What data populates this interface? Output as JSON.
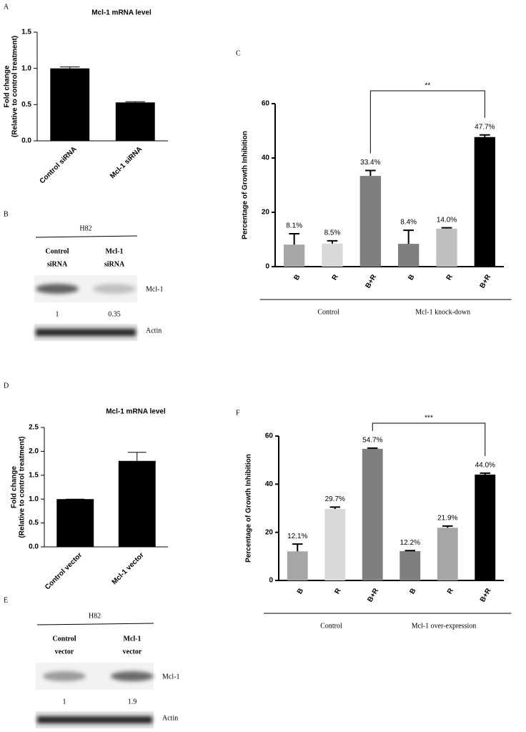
{
  "chart_data": [
    {
      "panel": "A",
      "type": "bar",
      "title": "Mcl-1 mRNA level",
      "ylabel": [
        "Fold change",
        "(Relative to control treatment)"
      ],
      "categories": [
        "Control siRNA",
        "Mcl-1 siRNA"
      ],
      "values": [
        1.0,
        0.53
      ],
      "errors": [
        0.02,
        0.01
      ],
      "colors": [
        "#000000",
        "#000000"
      ],
      "ylim": [
        0,
        1.5
      ],
      "yticks": [
        {
          "value": 0,
          "label": "0.0"
        },
        {
          "value": 0.5,
          "label": "0.5"
        },
        {
          "value": 1,
          "label": "1.0"
        },
        {
          "value": 1.5,
          "label": "1.5"
        }
      ]
    },
    {
      "panel": "C",
      "type": "bar",
      "ylabel": "Percentage of Growth Inhibition",
      "categories": [
        "B",
        "R",
        "B+R",
        "B",
        "R",
        "B+R"
      ],
      "values": [
        8.1,
        8.5,
        33.4,
        8.4,
        14.0,
        47.7
      ],
      "errors": [
        4,
        1,
        2,
        5,
        0.3,
        0.8
      ],
      "value_labels": [
        "8.1%",
        "8.5%",
        "33.4%",
        "8.4%",
        "14.0%",
        "47.7%"
      ],
      "colors": [
        "#a6a6a6",
        "#d9d9d9",
        "#7f7f7f",
        "#7f7f7f",
        "#bfbfbf",
        "#000000"
      ],
      "ylim": [
        0,
        60
      ],
      "yticks": [
        0,
        20,
        40,
        60
      ],
      "groups": [
        "Control",
        "Mcl-1 knock-down"
      ],
      "annotation": "**"
    },
    {
      "panel": "D",
      "type": "bar",
      "title": "Mcl-1 mRNA level",
      "ylabel": [
        "Fold change",
        "(Relative to control treatment)"
      ],
      "categories": [
        "Control vector",
        "Mcl-1 vector"
      ],
      "values": [
        1.0,
        1.8
      ],
      "errors": [
        0,
        0.18
      ],
      "colors": [
        "#000000",
        "#000000"
      ],
      "ylim": [
        0,
        2.5
      ],
      "yticks": [
        {
          "value": 0,
          "label": "0.0"
        },
        {
          "value": 0.5,
          "label": "0.5"
        },
        {
          "value": 1,
          "label": "1.0"
        },
        {
          "value": 1.5,
          "label": "1.5"
        },
        {
          "value": 2,
          "label": "2.0"
        },
        {
          "value": 2.5,
          "label": "2.5"
        }
      ]
    },
    {
      "panel": "F",
      "type": "bar",
      "ylabel": "Percentage of Growth Inhibition",
      "categories": [
        "B",
        "R",
        "B+R",
        "B",
        "R",
        "B+R"
      ],
      "values": [
        12.1,
        29.7,
        54.7,
        12.2,
        21.9,
        44.0
      ],
      "errors": [
        3,
        0.8,
        0.3,
        0.2,
        0.7,
        0.6
      ],
      "value_labels": [
        "12.1%",
        "29.7%",
        "54.7%",
        "12.2%",
        "21.9%",
        "44.0%"
      ],
      "colors": [
        "#a6a6a6",
        "#d9d9d9",
        "#7f7f7f",
        "#7f7f7f",
        "#a6a6a6",
        "#000000"
      ],
      "ylim": [
        0,
        60
      ],
      "yticks": [
        0,
        20,
        40,
        60
      ],
      "groups": [
        "Control",
        "Mcl-1 over-expression"
      ],
      "annotation": "***"
    }
  ],
  "blots": [
    {
      "panel": "B",
      "cell_line": "H82",
      "lanes": [
        [
          "Control",
          "siRNA"
        ],
        [
          "Mcl-1",
          "siRNA"
        ]
      ],
      "proteins": [
        "Mcl-1",
        "Actin"
      ],
      "relative_levels": [
        1,
        0.35
      ]
    },
    {
      "panel": "E",
      "cell_line": "H82",
      "lanes": [
        [
          "Control",
          "vector"
        ],
        [
          "Mcl-1",
          "vector"
        ]
      ],
      "proteins": [
        "Mcl-1",
        "Actin"
      ],
      "relative_levels": [
        1,
        1.9
      ]
    }
  ]
}
